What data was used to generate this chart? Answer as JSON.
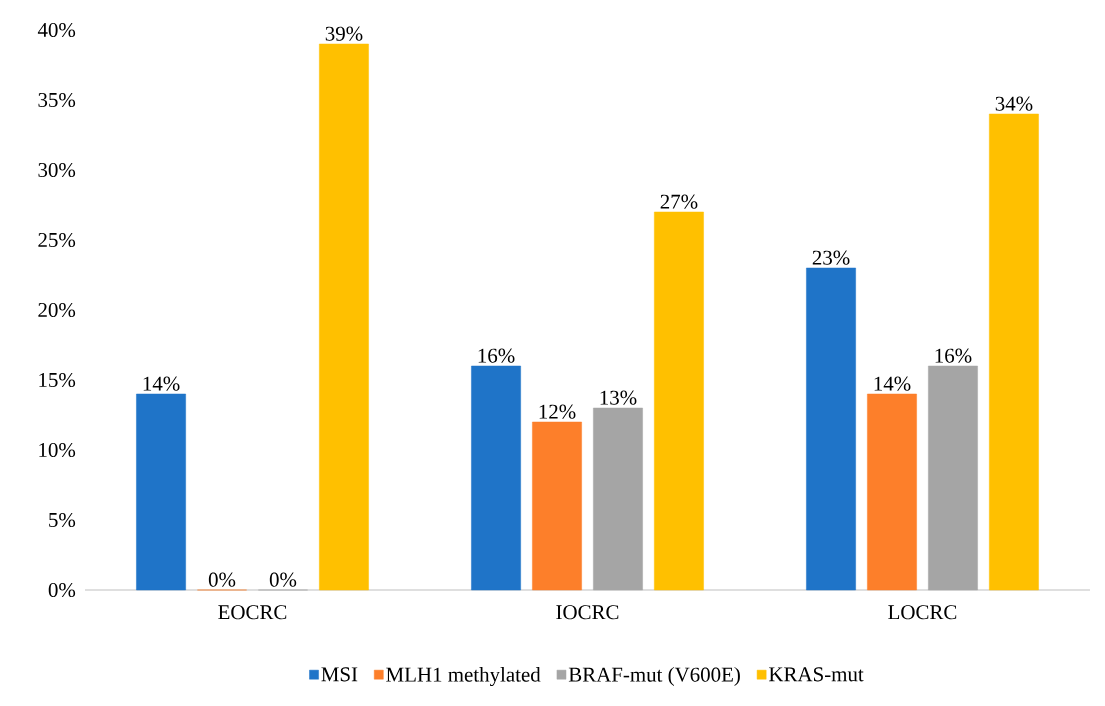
{
  "chart_data": {
    "type": "bar",
    "categories": [
      "EOCRC",
      "IOCRC",
      "LOCRC"
    ],
    "series": [
      {
        "name": "MSI",
        "color": "#1f74c8",
        "values": [
          14,
          16,
          23
        ],
        "value_labels": [
          "14%",
          "16%",
          "23%"
        ]
      },
      {
        "name": "MLH1 methylated",
        "color": "#fd7f2a",
        "values": [
          0,
          12,
          14
        ],
        "value_labels": [
          "0%",
          "12%",
          "14%"
        ]
      },
      {
        "name": "BRAF-mut (V600E)",
        "color": "#a5a5a5",
        "values": [
          0,
          13,
          16
        ],
        "value_labels": [
          "0%",
          "13%",
          "16%"
        ]
      },
      {
        "name": "KRAS-mut",
        "color": "#ffc000",
        "values": [
          39,
          27,
          34
        ],
        "value_labels": [
          "39%",
          "27%",
          "34%"
        ]
      }
    ],
    "ylim": [
      0,
      40
    ],
    "yticks": [
      {
        "value": 0,
        "label": "0%"
      },
      {
        "value": 5,
        "label": "5%"
      },
      {
        "value": 10,
        "label": "10%"
      },
      {
        "value": 15,
        "label": "15%"
      },
      {
        "value": 20,
        "label": "20%"
      },
      {
        "value": 25,
        "label": "25%"
      },
      {
        "value": 30,
        "label": "30%"
      },
      {
        "value": 35,
        "label": "35%"
      },
      {
        "value": 40,
        "label": "40%"
      }
    ],
    "legend": "bottom"
  }
}
